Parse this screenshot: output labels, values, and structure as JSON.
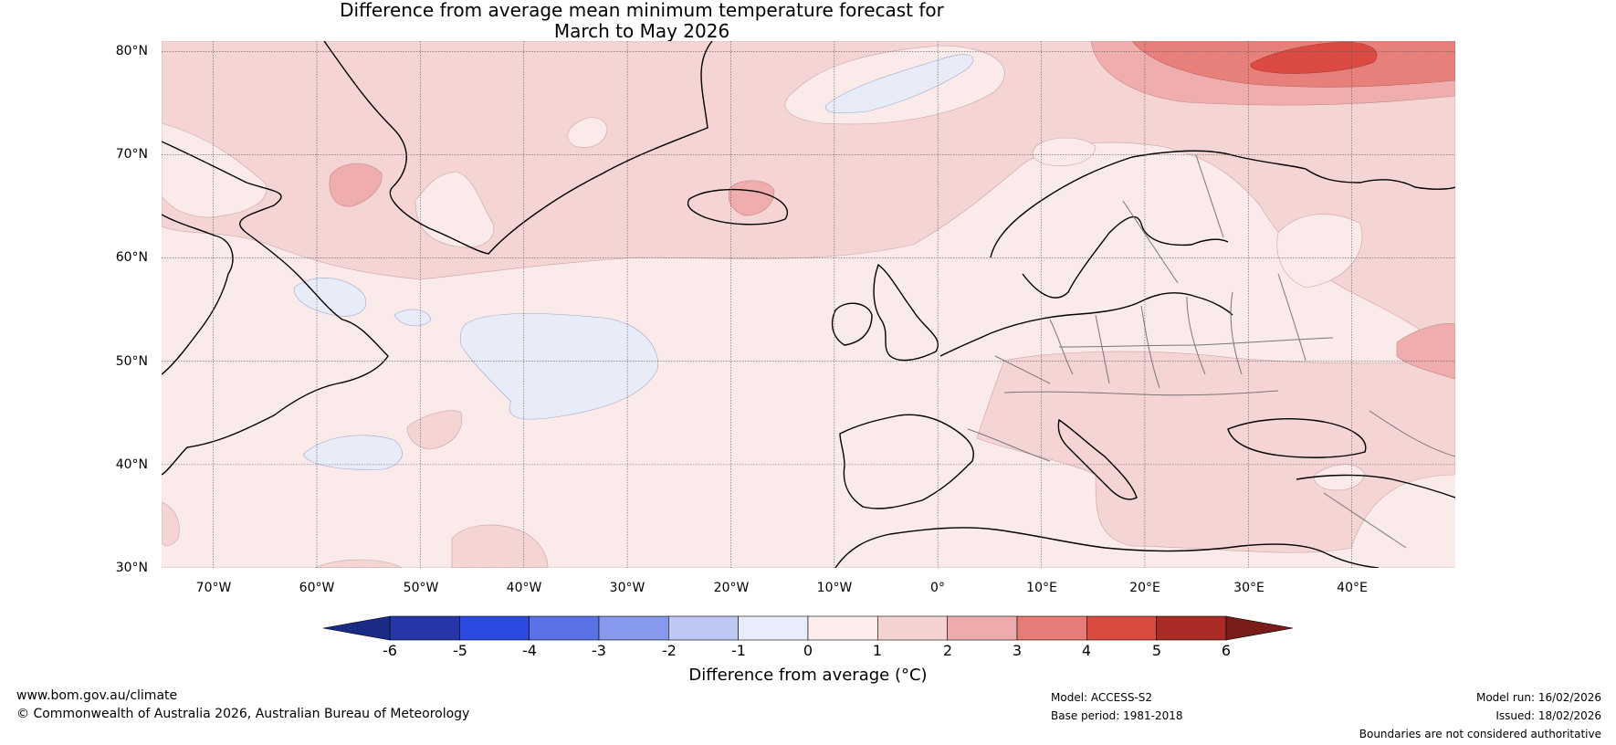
{
  "title": {
    "line1": "Difference from average mean minimum temperature forecast for",
    "line2": "March to May 2026"
  },
  "map": {
    "lat_labels": [
      "80°N",
      "70°N",
      "60°N",
      "50°N",
      "40°N",
      "30°N"
    ],
    "lon_labels": [
      "70°W",
      "60°W",
      "50°W",
      "40°W",
      "30°W",
      "20°W",
      "10°W",
      "0°",
      "10°E",
      "20°E",
      "30°E",
      "40°E"
    ],
    "lat_values": [
      80,
      70,
      60,
      50,
      40,
      30
    ],
    "lon_values": [
      -70,
      -60,
      -50,
      -40,
      -30,
      -20,
      -10,
      0,
      10,
      20,
      30,
      40
    ],
    "extent": {
      "lon_min": -75,
      "lon_max": 50,
      "lat_min": 30,
      "lat_max": 81
    },
    "colors": {
      "neg1_0": "#e8ecf9",
      "pos0_1": "#fbeaea",
      "pos1_2": "#f5d4d4",
      "pos2_3": "#efadad",
      "pos3_4": "#e7807b",
      "pos4_5": "#dc4b43",
      "coast": "#000000",
      "border": "#777777",
      "grid": "#555555"
    }
  },
  "colorbar": {
    "ticks": [
      "-6",
      "-5",
      "-4",
      "-3",
      "-2",
      "-1",
      "0",
      "1",
      "2",
      "3",
      "4",
      "5",
      "6"
    ],
    "bin_colors": [
      "#2537a8",
      "#2c4ae0",
      "#5b72e6",
      "#8799ec",
      "#bfc8f4",
      "#e8ecfb",
      "#fdecec",
      "#f5d2d2",
      "#efabab",
      "#e67c77",
      "#d94a40",
      "#aa2a25"
    ],
    "under_color": "#1b2a85",
    "over_color": "#7a1c19",
    "label": "Difference from average (°C)"
  },
  "footer": {
    "website": "www.bom.gov.au/climate",
    "copyright": "© Commonwealth of Australia 2026, Australian Bureau of Meteorology",
    "model": "Model: ACCESS-S2",
    "base_period": "Base period: 1981-2018",
    "model_run": "Model run: 16/02/2026",
    "issued": "Issued: 18/02/2026",
    "disclaimer": "Boundaries are not considered authoritative"
  }
}
